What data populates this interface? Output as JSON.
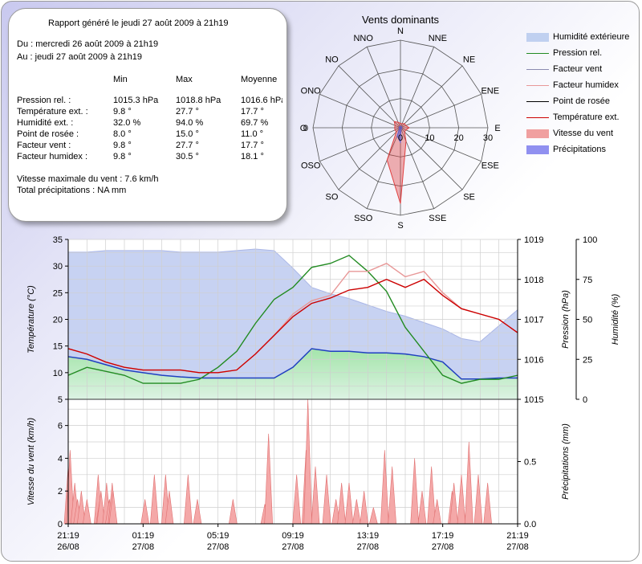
{
  "report": {
    "title": "Rapport généré le jeudi 27 août 2009 à 21h19",
    "from": "Du : mercredi 26 août 2009 à 21h19",
    "to": "Au : jeudi 27 août 2009 à 21h19",
    "headers": [
      "Min",
      "Max",
      "Moyenne"
    ],
    "rows": [
      {
        "label": "Pression rel. :",
        "min": "1015.3 hPa",
        "max": "1018.8 hPa",
        "avg": "1016.6 hPa"
      },
      {
        "label": "Température ext. :",
        "min": "9.8 °",
        "max": "27.7 °",
        "avg": "17.7 °"
      },
      {
        "label": "Humidité ext. :",
        "min": "32.0 %",
        "max": "94.0 %",
        "avg": "69.7 %"
      },
      {
        "label": "Point de rosée :",
        "min": "8.0 °",
        "max": "15.0 °",
        "avg": "11.0 °"
      },
      {
        "label": "Facteur vent :",
        "min": "9.8 °",
        "max": "27.7 °",
        "avg": "17.7 °"
      },
      {
        "label": "Facteur humidex :",
        "min": "9.8 °",
        "max": "30.5 °",
        "avg": "18.1 °"
      }
    ],
    "max_wind": "Vitesse maximale du vent : 7.6 km/h",
    "total_precip": "Total précipitations : NA mm"
  },
  "legend": [
    {
      "label": "Humidité extérieure",
      "color": "#c0d0f0",
      "kind": "area"
    },
    {
      "label": "Pression rel.",
      "color": "#228b22",
      "kind": "line"
    },
    {
      "label": "Facteur vent",
      "color": "#8a8ab0",
      "kind": "line"
    },
    {
      "label": "Facteur humidex",
      "color": "#e89898",
      "kind": "line"
    },
    {
      "label": "Point de rosée",
      "color": "#000000",
      "kind": "line"
    },
    {
      "label": "Température ext.",
      "color": "#cc0000",
      "kind": "line"
    },
    {
      "label": "Vitesse du vent",
      "color": "#f0a0a0",
      "kind": "area"
    },
    {
      "label": "Précipitations",
      "color": "#9090f0",
      "kind": "area"
    }
  ],
  "chart_data": [
    {
      "type": "radar",
      "title": "Vents dominants",
      "directions": [
        "N",
        "NNE",
        "NE",
        "ENE",
        "E",
        "ESE",
        "SE",
        "SSE",
        "S",
        "SSO",
        "SO",
        "OSO",
        "O",
        "ONO",
        "NO",
        "NNO"
      ],
      "r_ticks": [
        0,
        10,
        20,
        30
      ],
      "rmax": 30,
      "series": [
        {
          "name": "Vitesse du vent",
          "color": "#e04040",
          "values": [
            1.5,
            1.5,
            2,
            2,
            3,
            2,
            2,
            5,
            26,
            12,
            2,
            2,
            2,
            2,
            3,
            2
          ]
        },
        {
          "name": "Précipitations",
          "color": "#6060d0",
          "values": [
            0.5,
            0.5,
            0.5,
            0.5,
            0.5,
            0.5,
            0.5,
            0.5,
            5,
            3,
            0.5,
            0.5,
            0.5,
            0.5,
            0.5,
            0.5
          ]
        }
      ]
    },
    {
      "type": "line",
      "x_ticks": [
        [
          "21:19",
          "26/08"
        ],
        [
          "01:19",
          "27/08"
        ],
        [
          "05:19",
          "27/08"
        ],
        [
          "09:19",
          "27/08"
        ],
        [
          "13:19",
          "27/08"
        ],
        [
          "17:19",
          "27/08"
        ],
        [
          "21:19",
          "27/08"
        ]
      ],
      "y_left": {
        "label": "Température (°C)",
        "ticks": [
          5,
          10,
          15,
          20,
          25,
          30,
          35
        ],
        "range": [
          5,
          35
        ]
      },
      "y_right1": {
        "label": "Pression (hPa)",
        "ticks": [
          1015,
          1016,
          1017,
          1018,
          1019
        ],
        "range": [
          1015,
          1019
        ]
      },
      "y_right2": {
        "label": "Humidité (%)",
        "ticks": [
          0,
          25,
          50,
          75,
          100
        ],
        "range": [
          0,
          100
        ]
      },
      "grid": true,
      "series": [
        {
          "name": "Humidité extérieure",
          "axis": "y_right2",
          "kind": "area",
          "x": [
            0,
            1,
            2,
            3,
            4,
            5,
            6,
            7,
            8,
            9,
            10,
            11,
            12,
            13,
            14,
            15,
            16,
            17,
            18,
            19,
            20,
            21,
            22,
            23,
            24
          ],
          "y": [
            92,
            92,
            93,
            93,
            93,
            93,
            92,
            92,
            92,
            93,
            94,
            93,
            82,
            70,
            66,
            63,
            59,
            55,
            52,
            48,
            44,
            38,
            36,
            46,
            56
          ]
        },
        {
          "name": "Point de rosée",
          "axis": "y_left",
          "kind": "area",
          "x": [
            0,
            1,
            2,
            3,
            4,
            5,
            6,
            7,
            8,
            9,
            10,
            11,
            12,
            13,
            14,
            15,
            16,
            17,
            18,
            19,
            20,
            21,
            22,
            23,
            24
          ],
          "y": [
            13,
            12.5,
            11.5,
            10.5,
            10,
            9.5,
            9.2,
            9,
            9,
            9,
            9,
            9,
            11,
            14.5,
            14,
            14,
            13.7,
            13.7,
            13.5,
            13,
            12,
            8.8,
            8.8,
            9,
            9
          ]
        },
        {
          "name": "Pression rel.",
          "axis": "y_right1",
          "kind": "line",
          "x": [
            0,
            1,
            2,
            3,
            4,
            5,
            6,
            7,
            8,
            9,
            10,
            11,
            12,
            13,
            14,
            15,
            16,
            17,
            18,
            19,
            20,
            21,
            22,
            23,
            24
          ],
          "y": [
            1015.6,
            1015.8,
            1015.7,
            1015.6,
            1015.4,
            1015.4,
            1015.4,
            1015.5,
            1015.8,
            1016.2,
            1016.9,
            1017.5,
            1017.8,
            1018.3,
            1018.4,
            1018.6,
            1018.2,
            1017.7,
            1016.8,
            1016.2,
            1015.6,
            1015.4,
            1015.5,
            1015.5,
            1015.6
          ]
        },
        {
          "name": "Facteur humidex",
          "axis": "y_left",
          "kind": "line",
          "x": [
            0,
            1,
            2,
            3,
            4,
            5,
            6,
            7,
            8,
            9,
            10,
            11,
            12,
            13,
            14,
            15,
            16,
            17,
            18,
            19,
            20,
            21,
            22,
            23,
            24
          ],
          "y": [
            14.5,
            13.5,
            12,
            11,
            10.5,
            10.5,
            10.5,
            10,
            10,
            10.5,
            13.5,
            17,
            21,
            23.5,
            24.5,
            29,
            29,
            30.5,
            28,
            29,
            25,
            22,
            21,
            20,
            17.5
          ]
        },
        {
          "name": "Température ext.",
          "axis": "y_left",
          "kind": "line",
          "x": [
            0,
            1,
            2,
            3,
            4,
            5,
            6,
            7,
            8,
            9,
            10,
            11,
            12,
            13,
            14,
            15,
            16,
            17,
            18,
            19,
            20,
            21,
            22,
            23,
            24
          ],
          "y": [
            14.5,
            13.5,
            12,
            11,
            10.5,
            10.5,
            10.5,
            10,
            10,
            10.5,
            13.5,
            17,
            20.5,
            23,
            24,
            25.5,
            26,
            27.5,
            26,
            27.5,
            24.5,
            22,
            21,
            20,
            17.5
          ]
        }
      ]
    },
    {
      "type": "area",
      "x_ticks": [
        [
          "21:19",
          "26/08"
        ],
        [
          "01:19",
          "27/08"
        ],
        [
          "05:19",
          "27/08"
        ],
        [
          "09:19",
          "27/08"
        ],
        [
          "13:19",
          "27/08"
        ],
        [
          "17:19",
          "27/08"
        ],
        [
          "21:19",
          "27/08"
        ]
      ],
      "y_left": {
        "label": "Vitesse du vent (km/h)",
        "ticks": [
          0,
          2,
          4,
          6
        ],
        "range": [
          0,
          7.6
        ]
      },
      "y_right1": {
        "label": "Précipitations (mm)",
        "ticks": [
          "0.0",
          "0.5"
        ],
        "range": [
          0,
          1.0
        ]
      },
      "grid": true,
      "series": [
        {
          "name": "Vitesse du vent",
          "kind": "spikes",
          "x": [
            0,
            0.1,
            0.35,
            0.5,
            0.7,
            1.0,
            1.6,
            1.7,
            1.75,
            2.05,
            2.2,
            2.35,
            2.4,
            4.1,
            4.6,
            5.2,
            5.4,
            6.4,
            6.9,
            8.8,
            10.5,
            10.7,
            12.2,
            12.7,
            12.8,
            13.2,
            13.8,
            14.3,
            14.6,
            15.0,
            15.4,
            15.8,
            16.3,
            16.9,
            17.3,
            18.5,
            18.9,
            19.4,
            19.7,
            20.5,
            20.6,
            21.0,
            21.4,
            21.9,
            22.4
          ],
          "y": [
            3.5,
            4.5,
            2.5,
            1.5,
            2.0,
            1.5,
            3.0,
            1.5,
            2.0,
            2.5,
            1.5,
            2.5,
            2.0,
            1.5,
            3.0,
            3.0,
            2.0,
            3.0,
            1.5,
            1.5,
            1.2,
            5.5,
            3.0,
            4.5,
            7.6,
            3.5,
            3.0,
            1.5,
            2.5,
            2.5,
            1.5,
            2.0,
            1.0,
            4.5,
            3.5,
            4.0,
            2.0,
            3.5,
            1.5,
            2.0,
            2.5,
            3.0,
            5.0,
            3.0,
            2.5
          ]
        }
      ]
    }
  ]
}
